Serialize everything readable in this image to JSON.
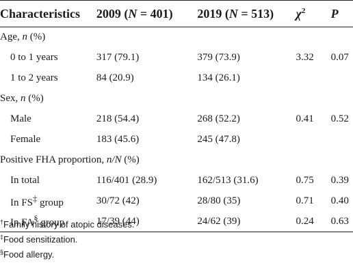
{
  "header": {
    "characteristics": "Characteristics",
    "col_2009_prefix": "2009 (",
    "col_2009_n": "N",
    "col_2009_suffix": " = 401)",
    "col_2019_prefix": "2019 (",
    "col_2019_n": "N",
    "col_2019_suffix": " = 513)",
    "chi_symbol": "χ",
    "chi_sup": "2",
    "p": "P"
  },
  "sections": {
    "age": {
      "label": "Age, ",
      "unit_italic": "n",
      "unit_rest": " (%)"
    },
    "sex": {
      "label": "Sex, ",
      "unit_italic": "n",
      "unit_rest": " (%)"
    },
    "fha": {
      "label": "Positive FHA proportion, ",
      "unit_italic": "n/N",
      "unit_rest": " (%)"
    }
  },
  "rows": {
    "age_0_1": {
      "label": "0 to 1 years",
      "y2009": "317 (79.1)",
      "y2019": "379 (73.9)",
      "chi2": "3.32",
      "p": "0.07"
    },
    "age_1_2": {
      "label": "1 to 2 years",
      "y2009": "84 (20.9)",
      "y2019": "134 (26.1)",
      "chi2": "",
      "p": ""
    },
    "male": {
      "label": "Male",
      "y2009": "218 (54.4)",
      "y2019": "268 (52.2)",
      "chi2": "0.41",
      "p": "0.52"
    },
    "female": {
      "label": "Female",
      "y2009": "183 (45.6)",
      "y2019": "245 (47.8)",
      "chi2": "",
      "p": ""
    },
    "in_total": {
      "label": "In total",
      "y2009": "116/401 (28.9)",
      "y2019": "162/513 (31.6)",
      "chi2": "0.75",
      "p": "0.39"
    },
    "in_fs": {
      "label": "In FS",
      "sup": "‡",
      "label_rest": " group",
      "y2009": "30/72 (42)",
      "y2019": "28/80 (35)",
      "chi2": "0.71",
      "p": "0.40"
    },
    "in_fa": {
      "label": "In FA",
      "sup": "§",
      "label_rest": " group",
      "y2009": "17/39 (44)",
      "y2019": "24/62 (39)",
      "chi2": "0.24",
      "p": "0.63"
    }
  },
  "footnotes": [
    {
      "mark": "†",
      "text": "Family history of atopic diseases."
    },
    {
      "mark": "‡",
      "text": "Food sensitization."
    },
    {
      "mark": "§",
      "text": "Food allergy."
    }
  ]
}
